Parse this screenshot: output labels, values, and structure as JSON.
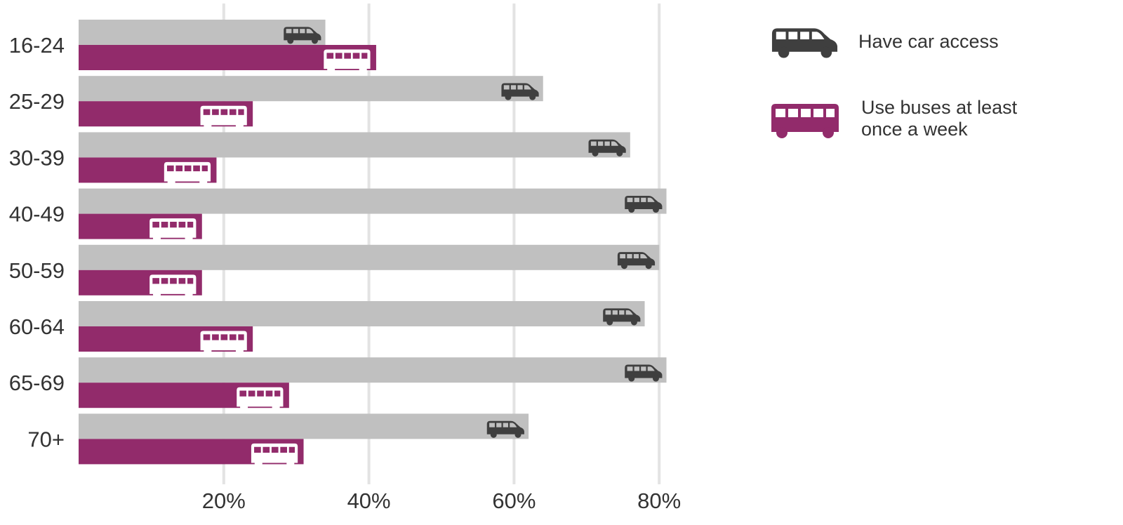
{
  "chart_data": {
    "type": "bar",
    "orientation": "horizontal",
    "categories": [
      "16-24",
      "25-29",
      "30-39",
      "40-49",
      "50-59",
      "60-64",
      "65-69",
      "70+"
    ],
    "series": [
      {
        "name": "Have car access",
        "icon": "car-icon",
        "color": "#c0c0c0",
        "icon_color": "#3f3f3f",
        "values": [
          34,
          64,
          76,
          81,
          80,
          78,
          81,
          62
        ]
      },
      {
        "name": "Use buses at least once a week",
        "icon": "bus-icon",
        "color": "#922b6b",
        "icon_color": "#ffffff",
        "values": [
          41,
          24,
          19,
          17,
          17,
          24,
          29,
          31
        ]
      }
    ],
    "x_ticks": [
      20,
      40,
      60,
      80
    ],
    "x_tick_labels": [
      "20%",
      "40%",
      "60%",
      "80%"
    ],
    "xlim": [
      0,
      82
    ],
    "grid": true,
    "legend_position": "right"
  },
  "legend": {
    "car_label": "Have car access",
    "bus_label_line1": "Use buses at least",
    "bus_label_line2": "once a week"
  },
  "colors": {
    "car_bar": "#c0c0c0",
    "bus_bar": "#922b6b",
    "car_icon": "#3f3f3f",
    "bus_icon": "#ffffff",
    "gridline": "#e3e3e3",
    "text": "#333333"
  }
}
